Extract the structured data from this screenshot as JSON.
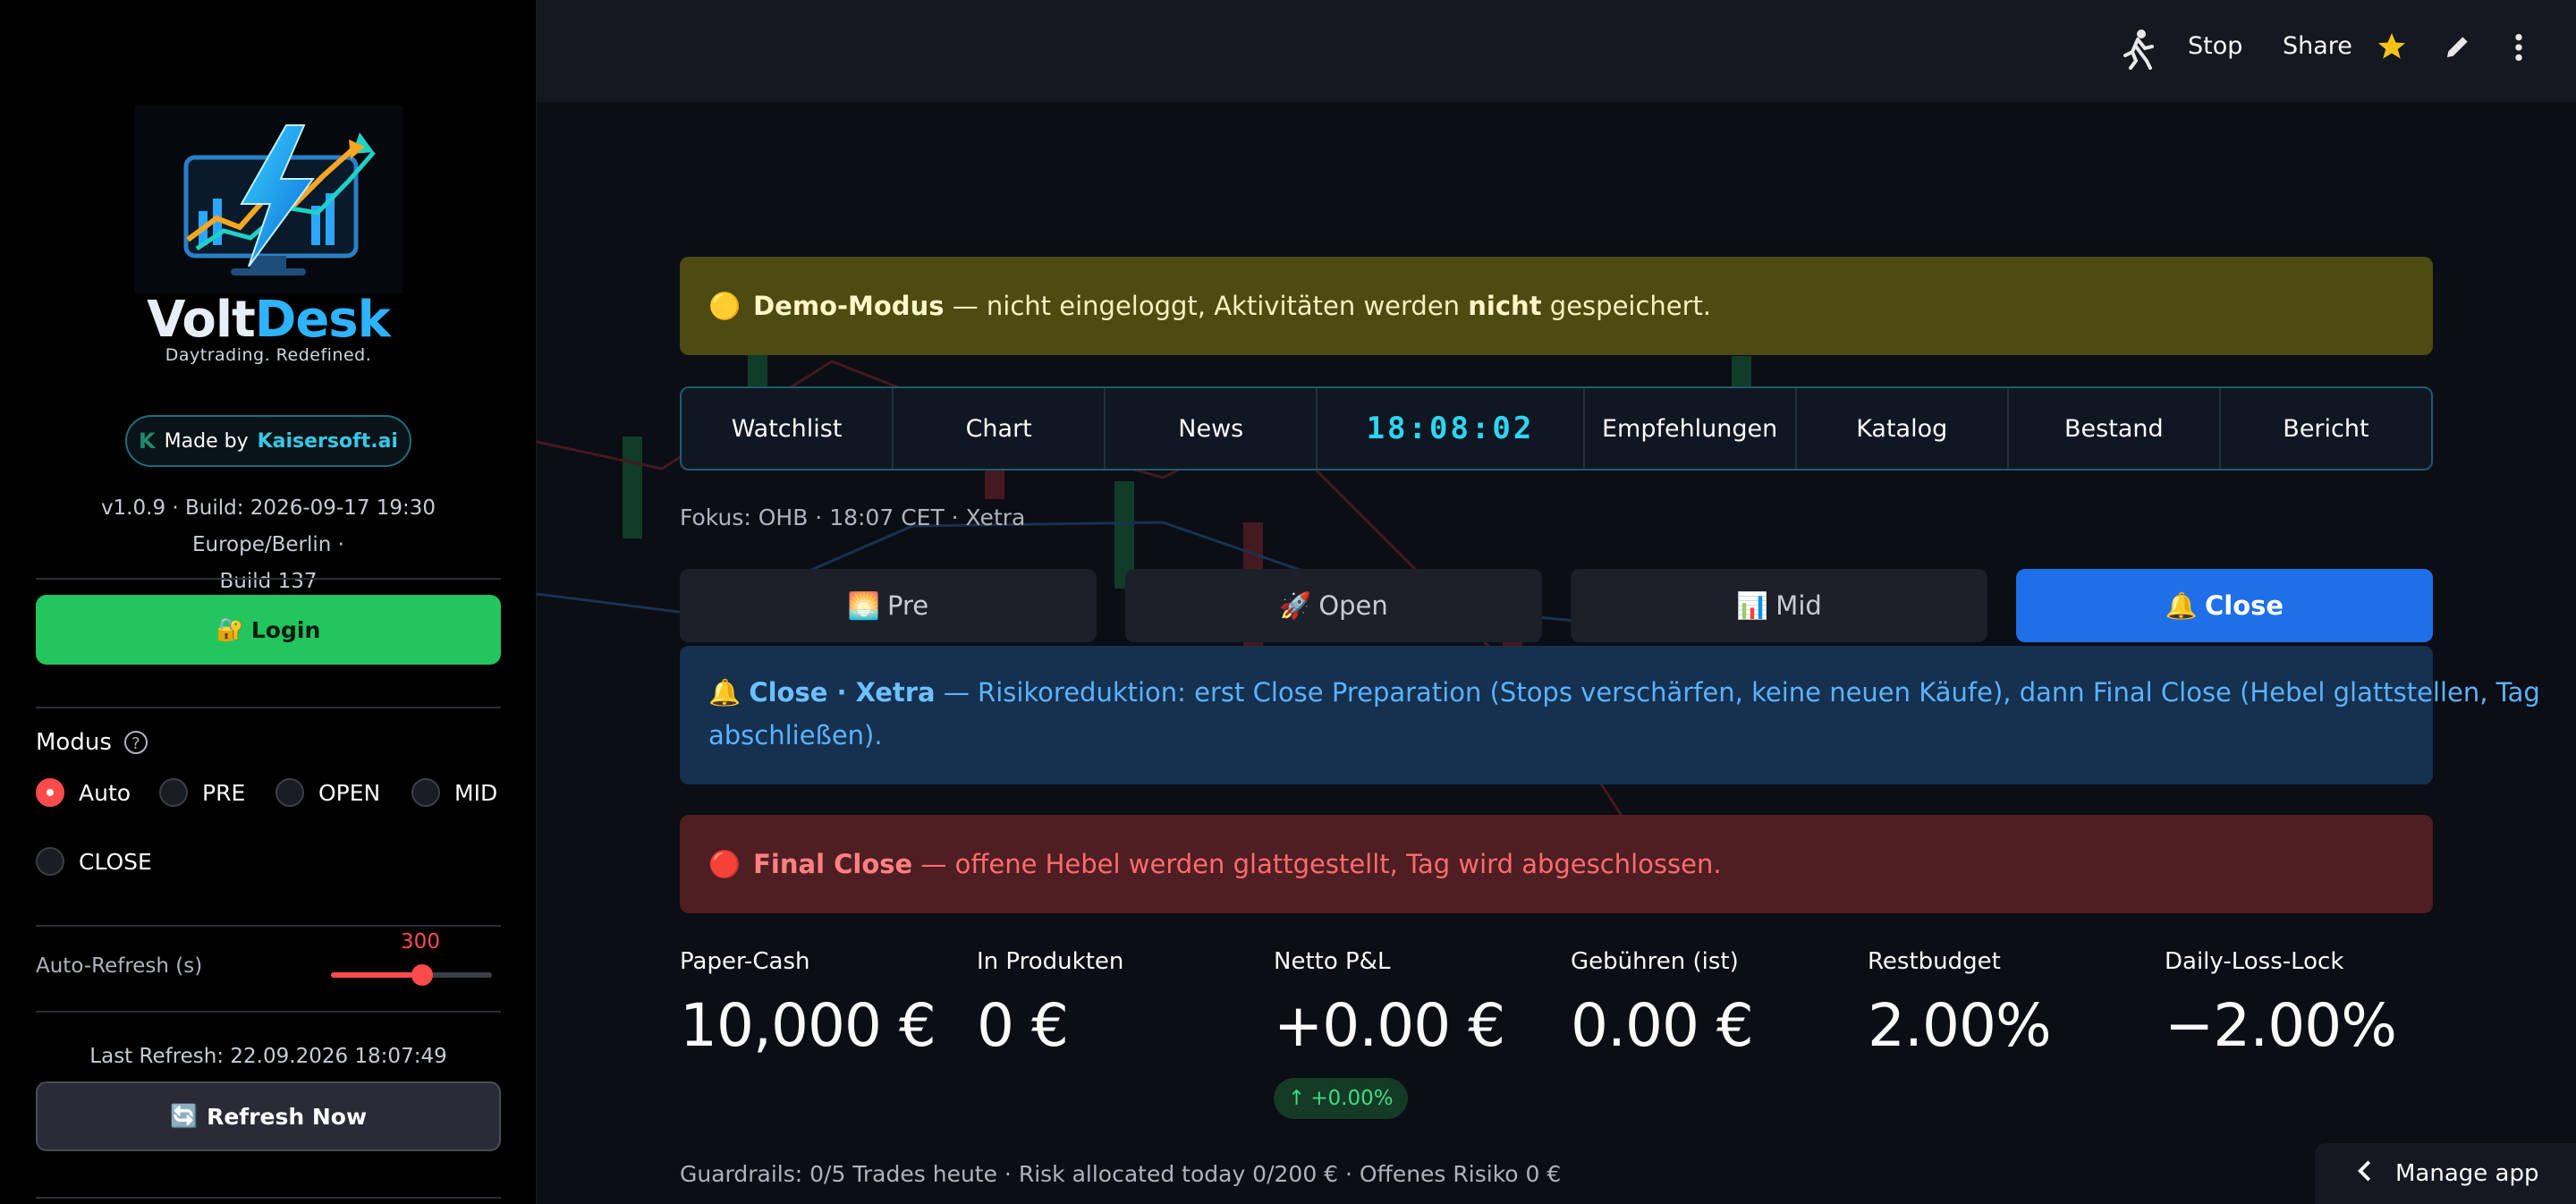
{
  "sidebar": {
    "brand": {
      "name_part1": "Volt",
      "name_part2": "Desk",
      "tagline": "Daytrading. Redefined."
    },
    "made_by": {
      "prefix": "Made by",
      "company": "Kaisersoft.ai",
      "icon": "k-logo-icon"
    },
    "version_line1": "v1.0.9 · Build: 2026-09-17 19:30 Europe/Berlin ·",
    "version_line2": "Build 137",
    "login": {
      "emoji": "🔐",
      "label": "Login"
    },
    "modus": {
      "label": "Modus",
      "help": "?",
      "options": [
        {
          "label": "Auto",
          "selected": true
        },
        {
          "label": "PRE",
          "selected": false
        },
        {
          "label": "OPEN",
          "selected": false
        },
        {
          "label": "MID",
          "selected": false
        },
        {
          "label": "CLOSE",
          "selected": false
        }
      ]
    },
    "auto_refresh": {
      "label": "Auto-Refresh (s)",
      "value": "300",
      "level_fraction": 0.57
    },
    "last_refresh": "Last Refresh: 22.09.2026 18:07:49",
    "refresh_now": {
      "emoji": "🔄",
      "label": "Refresh Now"
    }
  },
  "header": {
    "stop_label": "Stop",
    "share_label": "Share",
    "icons": [
      "running-man-icon",
      "star-icon",
      "pencil-icon",
      "kebab-menu-icon"
    ]
  },
  "demo_banner": {
    "emoji": "🟡",
    "bold1": "Demo-Modus",
    "text1": " — nicht eingeloggt, Aktivitäten werden ",
    "bold2": "nicht",
    "text2": " gespeichert."
  },
  "nav": {
    "items": [
      "Watchlist",
      "Chart",
      "News"
    ],
    "clock": "18:08:02",
    "items_right": [
      "Empfehlungen",
      "Katalog",
      "Bestand",
      "Bericht"
    ]
  },
  "focus_line": "Fokus: OHB · 18:07 CET · Xetra",
  "phases": [
    {
      "emoji": "🌅",
      "label": "Pre",
      "active": false
    },
    {
      "emoji": "🚀",
      "label": "Open",
      "active": false
    },
    {
      "emoji": "📊",
      "label": "Mid",
      "active": false
    },
    {
      "emoji": "🔔",
      "label": "Close",
      "active": true
    }
  ],
  "info": {
    "emoji": "🔔",
    "bold": "Close · Xetra",
    "line1": " — Risikoreduktion: erst Close Preparation (Stops verschärfen, keine neuen Käufe), dann Final Close (Hebel glattstellen, Tag",
    "line2": "abschließen)."
  },
  "final_banner": {
    "emoji": "🔴",
    "bold": "Final Close",
    "text": " — offene Hebel werden glattgestellt, Tag wird abgeschlossen."
  },
  "metrics": [
    {
      "label": "Paper-Cash",
      "value": "10,000 €"
    },
    {
      "label": "In Produkten",
      "value": "0 €"
    },
    {
      "label": "Netto P&L",
      "value": "+0.00 €",
      "delta": "+0.00%"
    },
    {
      "label": "Gebühren (ist)",
      "value": "0.00 €"
    },
    {
      "label": "Restbudget",
      "value": "2.00%"
    },
    {
      "label": "Daily-Loss-Lock",
      "value": "−2.00%"
    }
  ],
  "guardrails": "Guardrails: 0/5 Trades heute · Risk allocated today 0/200 € · Offenes Risiko 0 €",
  "manage_app": "Manage app",
  "colors": {
    "accent_blue": "#1f6fe8",
    "success_green": "#22c55e",
    "danger_red": "#ff4b4b",
    "clock_cyan": "#2ed6f0"
  }
}
